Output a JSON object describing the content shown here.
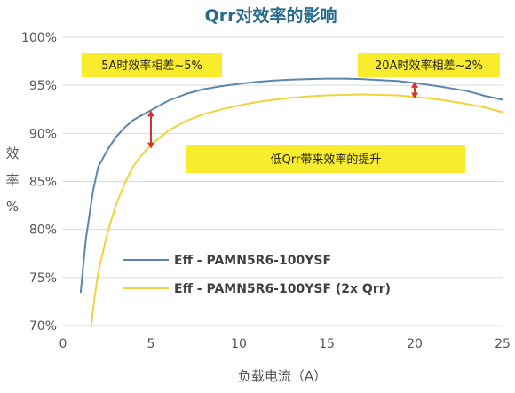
{
  "chart_data": {
    "type": "line",
    "title": "Qrr对效率的影响",
    "xlabel": "负载电流（A）",
    "ylabel": [
      "效",
      "率",
      "%"
    ],
    "xlim": [
      0,
      25
    ],
    "ylim": [
      70,
      100
    ],
    "x_ticks": [
      "0",
      "5",
      "10",
      "15",
      "20",
      "25"
    ],
    "y_ticks": [
      "70%",
      "75%",
      "80%",
      "85%",
      "90%",
      "95%",
      "100%"
    ],
    "grid": "horizontal",
    "legend_position": "lower-center",
    "series": [
      {
        "name": "Eff - PAMN5R6-100YSF",
        "color": "#5b86ad",
        "x": [
          1,
          1.3,
          1.7,
          2,
          2.5,
          3,
          3.5,
          4,
          4.5,
          5,
          6,
          7,
          8,
          9,
          10,
          11,
          12,
          13,
          14,
          15,
          16,
          17,
          18,
          19,
          20,
          21,
          22,
          23,
          24,
          25
        ],
        "y": [
          73.4,
          79.0,
          84.0,
          86.5,
          88.2,
          89.6,
          90.6,
          91.4,
          91.9,
          92.4,
          93.4,
          94.1,
          94.6,
          94.9,
          95.15,
          95.35,
          95.5,
          95.6,
          95.65,
          95.7,
          95.7,
          95.65,
          95.55,
          95.45,
          95.25,
          95.0,
          94.7,
          94.4,
          93.9,
          93.5
        ]
      },
      {
        "name": "Eff - PAMN5R6-100YSF (2x Qrr)",
        "color": "#f2d23c",
        "x": [
          1.6,
          1.8,
          2,
          2.5,
          3,
          3.5,
          4,
          4.5,
          5,
          6,
          7,
          8,
          9,
          10,
          11,
          12,
          13,
          14,
          15,
          16,
          17,
          18,
          19,
          20,
          21,
          22,
          23,
          24,
          25
        ],
        "y": [
          70.0,
          73.0,
          75.5,
          79.5,
          82.5,
          84.8,
          86.6,
          87.8,
          88.8,
          90.3,
          91.3,
          92.0,
          92.5,
          92.9,
          93.25,
          93.5,
          93.7,
          93.85,
          93.95,
          94.0,
          94.05,
          94.0,
          93.95,
          93.8,
          93.6,
          93.35,
          93.05,
          92.7,
          92.2
        ]
      }
    ],
    "annotations": [
      {
        "text": "5A时效率相差~5%",
        "x": 5,
        "y_from": 92.4,
        "y_to": 88.4
      },
      {
        "text": "20A时效率相差~2%",
        "x": 20,
        "y_from": 95.4,
        "y_to": 93.6
      },
      {
        "text": "低Qrr带来效率的提升"
      }
    ],
    "colors": {
      "arrow": "#d9342b",
      "note_bg": "#f9ec2c",
      "grid": "#d9d9d9",
      "title": "#2a6b8c"
    }
  }
}
